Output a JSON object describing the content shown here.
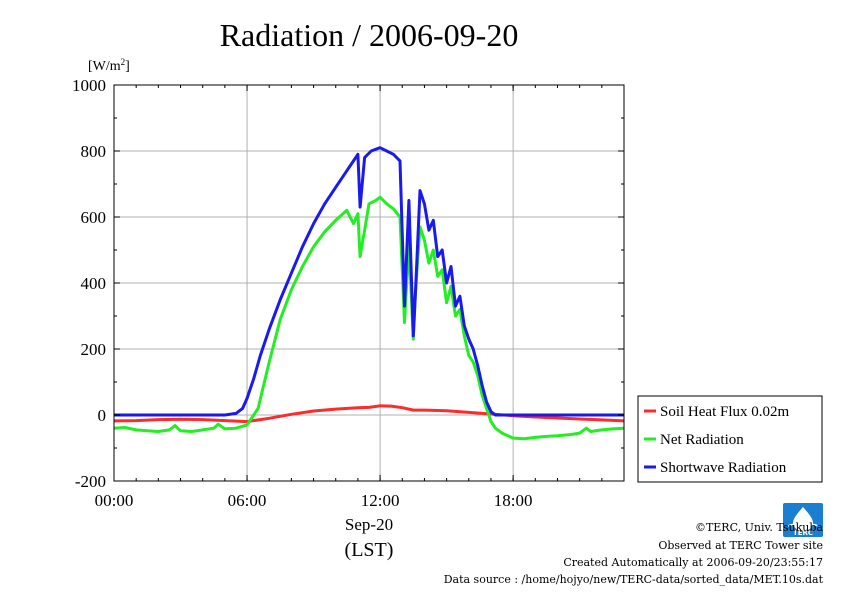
{
  "chart_data": {
    "type": "line",
    "title": "Radiation / 2006-09-20",
    "ylabel": "[W/m",
    "ylabel_sup": "2",
    "ylabel_close": "]",
    "xlabel_date": "Sep-20",
    "xlabel_tz": "(LST)",
    "xlim": [
      0,
      23
    ],
    "ylim": [
      -200,
      1000
    ],
    "yticks": [
      -200,
      0,
      200,
      400,
      600,
      800,
      1000
    ],
    "ytick_labels": [
      "-200",
      "0",
      "200",
      "400",
      "600",
      "800",
      "1000"
    ],
    "xticks": [
      0,
      6,
      12,
      18
    ],
    "xtick_labels": [
      "00:00",
      "06:00",
      "12:00",
      "18:00"
    ],
    "grid": true,
    "legend_position": "right",
    "series": [
      {
        "name": "Soil Heat Flux 0.02m",
        "color": "#ff2a2a",
        "x": [
          0,
          1,
          2,
          3,
          4,
          5,
          6,
          7,
          8,
          9,
          10,
          11,
          11.5,
          12,
          12.5,
          13,
          13.5,
          14,
          15,
          16,
          17,
          18,
          19,
          20,
          21,
          22,
          23
        ],
        "y": [
          -18,
          -17,
          -14,
          -13,
          -14,
          -17,
          -20,
          -10,
          2,
          12,
          18,
          22,
          23,
          28,
          27,
          22,
          15,
          15,
          13,
          8,
          3,
          -2,
          -6,
          -9,
          -12,
          -15,
          -18
        ]
      },
      {
        "name": "Net Radiation",
        "color": "#22ee22",
        "x": [
          0,
          0.5,
          1,
          1.5,
          2,
          2.5,
          2.75,
          3,
          3.5,
          4,
          4.5,
          4.7,
          5,
          5.5,
          6,
          6.5,
          7,
          7.5,
          8,
          8.5,
          9,
          9.5,
          10,
          10.5,
          10.8,
          11,
          11.1,
          11.3,
          11.5,
          11.8,
          12,
          12.3,
          12.6,
          12.9,
          13.1,
          13.3,
          13.5,
          13.6,
          13.8,
          14,
          14.2,
          14.4,
          14.6,
          14.8,
          15,
          15.2,
          15.4,
          15.6,
          15.8,
          16,
          16.2,
          16.4,
          16.6,
          16.8,
          17,
          17.2,
          17.5,
          18,
          18.5,
          19,
          19.5,
          20,
          20.5,
          21,
          21.3,
          21.5,
          22,
          22.5,
          23
        ],
        "y": [
          -40,
          -38,
          -45,
          -48,
          -50,
          -45,
          -32,
          -48,
          -50,
          -45,
          -40,
          -28,
          -42,
          -40,
          -30,
          20,
          160,
          290,
          380,
          450,
          510,
          555,
          590,
          620,
          580,
          610,
          480,
          560,
          640,
          650,
          660,
          640,
          625,
          600,
          280,
          520,
          230,
          380,
          570,
          530,
          460,
          500,
          420,
          440,
          340,
          390,
          300,
          320,
          240,
          180,
          160,
          120,
          60,
          20,
          -20,
          -40,
          -55,
          -70,
          -72,
          -68,
          -65,
          -63,
          -60,
          -55,
          -40,
          -50,
          -45,
          -42,
          -40
        ]
      },
      {
        "name": "Shortwave Radiation",
        "color": "#1a1aee",
        "x": [
          0,
          1,
          2,
          3,
          4,
          5,
          5.5,
          5.8,
          6,
          6.3,
          6.6,
          7,
          7.5,
          8,
          8.5,
          9,
          9.5,
          10,
          10.5,
          10.8,
          11,
          11.1,
          11.3,
          11.6,
          11.8,
          12,
          12.3,
          12.6,
          12.9,
          13.1,
          13.3,
          13.5,
          13.6,
          13.8,
          14,
          14.2,
          14.4,
          14.6,
          14.8,
          15,
          15.2,
          15.4,
          15.6,
          15.8,
          16,
          16.2,
          16.4,
          16.6,
          16.8,
          17,
          17.2,
          17.5,
          18,
          19,
          20,
          21,
          22,
          23
        ],
        "y": [
          0,
          0,
          0,
          0,
          0,
          0,
          5,
          20,
          50,
          110,
          180,
          260,
          350,
          430,
          510,
          580,
          640,
          690,
          740,
          770,
          790,
          630,
          780,
          800,
          805,
          810,
          800,
          790,
          770,
          330,
          650,
          240,
          380,
          680,
          640,
          560,
          590,
          480,
          500,
          400,
          450,
          330,
          360,
          270,
          230,
          200,
          150,
          90,
          40,
          10,
          0,
          0,
          0,
          0,
          0,
          0,
          0,
          0
        ]
      }
    ]
  },
  "footer": {
    "copyright": "©TERC, Univ. Tsukuba",
    "observed": "Observed at TERC Tower site",
    "created": "Created Automatically at 2006-09-20/23:55:17",
    "source": "Data source : /home/hojyo/new/TERC-data/sorted_data/MET.10s.dat"
  },
  "logo": {
    "text": "TERC",
    "color": "#1a7fd0"
  }
}
